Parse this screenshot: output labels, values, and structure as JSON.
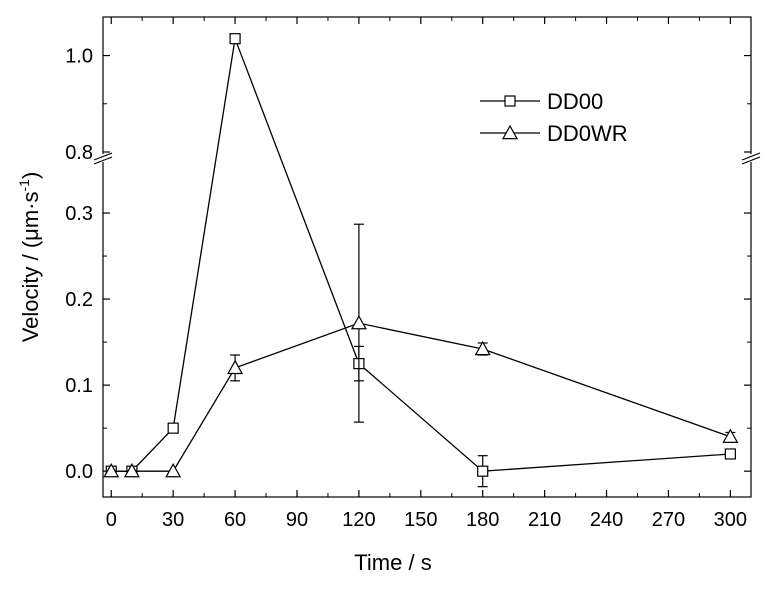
{
  "chart_data": {
    "type": "line",
    "xlabel": "Time / s",
    "ylabel": "Velocity / (μm·s",
    "ylabel_sup": "-1",
    "ylabel_close": ")",
    "x_ticks": [
      0,
      30,
      60,
      90,
      120,
      150,
      180,
      210,
      240,
      270,
      300
    ],
    "xlim": [
      -4,
      310
    ],
    "y_axis_break": {
      "lower": {
        "range": [
          -0.03,
          0.35
        ],
        "ticks": [
          "0.0",
          "0.1",
          "0.2",
          "0.3"
        ]
      },
      "upper": {
        "range": [
          0.8,
          1.08
        ],
        "ticks": [
          "0.8",
          "1.0"
        ]
      }
    },
    "legend_position": "top-right",
    "series": [
      {
        "name": "DD00",
        "marker": "square",
        "x": [
          0,
          10,
          30,
          60,
          120,
          180,
          300
        ],
        "y": [
          0.0,
          0.0,
          0.05,
          1.035,
          0.125,
          0.0,
          0.02
        ],
        "err": [
          0,
          0,
          0,
          0.005,
          0.02,
          0.018,
          0.005
        ]
      },
      {
        "name": "DD0WR",
        "marker": "triangle",
        "x": [
          0,
          10,
          30,
          60,
          120,
          180,
          300
        ],
        "y": [
          0.0,
          0.0,
          0.0,
          0.12,
          0.172,
          0.142,
          0.04
        ],
        "err": [
          0,
          0,
          0,
          0.015,
          0.115,
          0.007,
          0.005
        ]
      }
    ]
  }
}
